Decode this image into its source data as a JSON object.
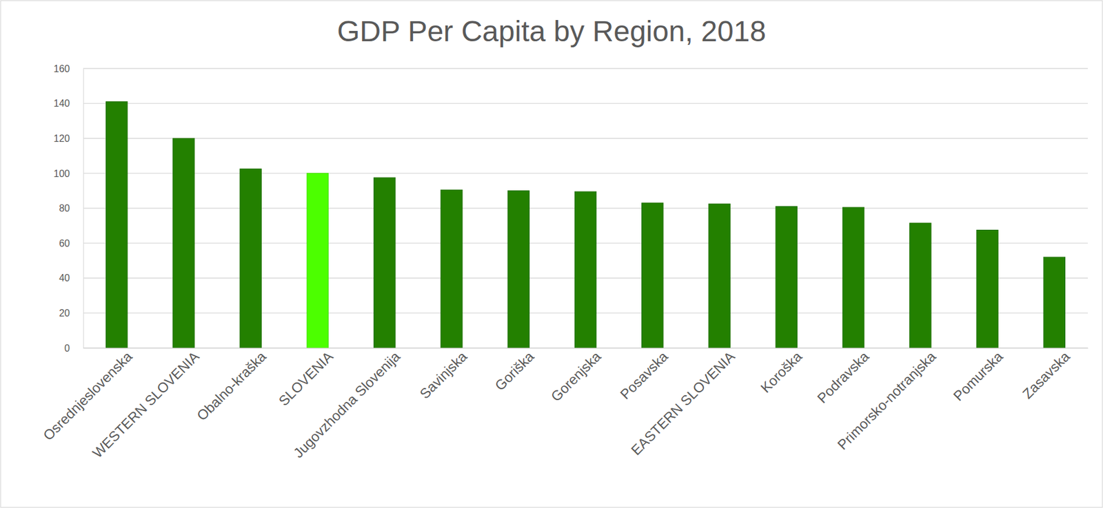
{
  "chart_data": {
    "type": "bar",
    "title": "GDP Per Capita by Region, 2018",
    "categories": [
      "Osrednjeslovenska",
      "WESTERN SLOVENIA",
      "Obalno-kraška",
      "SLOVENIA",
      "Jugovzhodna Slovenija",
      "Savinjska",
      "Goriška",
      "Gorenjska",
      "Posavska",
      "EASTERN SLOVENIA",
      "Koroška",
      "Podravska",
      "Primorsko-notranjska",
      "Pomurska",
      "Zasavska"
    ],
    "values": [
      141,
      120,
      102.5,
      100,
      97.5,
      90.5,
      90,
      89.5,
      83,
      82.5,
      81,
      80.5,
      71.5,
      67.5,
      52
    ],
    "colors": [
      "#238000",
      "#238000",
      "#238000",
      "#4cff00",
      "#238000",
      "#238000",
      "#238000",
      "#238000",
      "#238000",
      "#238000",
      "#238000",
      "#238000",
      "#238000",
      "#238000",
      "#238000"
    ],
    "ylim": [
      0,
      160
    ],
    "yticks": [
      0,
      20,
      40,
      60,
      80,
      100,
      120,
      140,
      160
    ],
    "grid": true
  }
}
